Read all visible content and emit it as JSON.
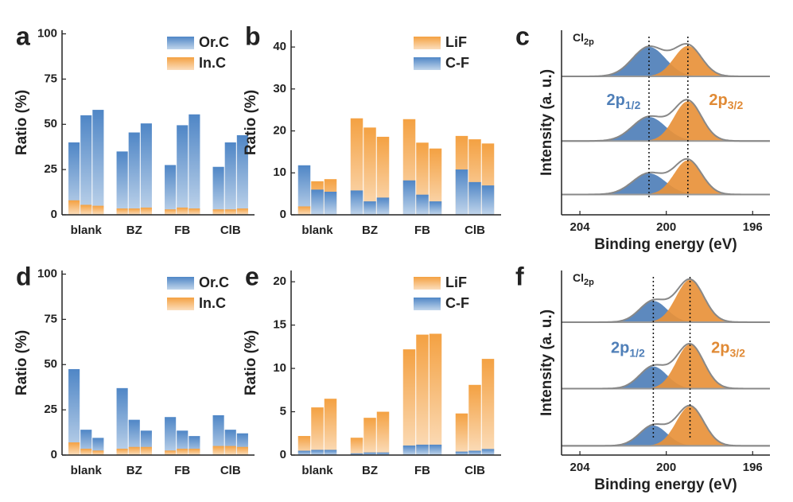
{
  "chart_data": [
    {
      "panel": "a",
      "type": "grouped_bar",
      "ylabel": "Ratio (%)",
      "categories": [
        "blank",
        "BZ",
        "FB",
        "ClB"
      ],
      "ylim": [
        0,
        102
      ],
      "yticks": [
        0,
        25,
        50,
        75,
        100
      ],
      "legend": "upper right",
      "series": [
        {
          "name": "Or.C",
          "color": "#4f86c6",
          "values": [
            [
              40,
              55,
              58
            ],
            [
              35,
              45.5,
              50.5
            ],
            [
              27.5,
              49.5,
              55.5
            ],
            [
              26.5,
              40,
              44
            ]
          ]
        },
        {
          "name": "In.C",
          "color": "#f4a142",
          "values": [
            [
              8,
              5.5,
              5
            ],
            [
              3.5,
              3.5,
              4
            ],
            [
              3,
              4,
              3.5
            ],
            [
              3,
              3,
              3.5
            ]
          ]
        }
      ]
    },
    {
      "panel": "b",
      "type": "grouped_bar",
      "ylabel": "Ratio (%)",
      "categories": [
        "blank",
        "BZ",
        "FB",
        "ClB"
      ],
      "ylim": [
        0,
        44
      ],
      "yticks": [
        0,
        10,
        20,
        30,
        40
      ],
      "legend": "upper right",
      "series": [
        {
          "name": "LiF",
          "color": "#f4a142",
          "values": [
            [
              2,
              8,
              8.5
            ],
            [
              23,
              20.8,
              18.6
            ],
            [
              22.8,
              17.2,
              15.8
            ],
            [
              18.8,
              18,
              17
            ]
          ]
        },
        {
          "name": "C-F",
          "color": "#4f86c6",
          "values": [
            [
              11.8,
              6,
              5.5
            ],
            [
              5.8,
              3.2,
              4.1
            ],
            [
              8.2,
              4.8,
              3.2
            ],
            [
              10.8,
              7.8,
              7
            ]
          ]
        }
      ]
    },
    {
      "panel": "c",
      "type": "xps",
      "ylabel": "Intensity (a. u.)",
      "xlabel": "Binding energy (eV)",
      "xlim": [
        204.85,
        195.2
      ],
      "xticks": [
        204,
        200,
        196
      ],
      "ylim": [
        0,
        10
      ],
      "guides": [
        200.8,
        199.0
      ],
      "core": {
        "text": "Cl",
        "sub": "2p"
      },
      "labels": [
        {
          "text": "2p",
          "sub": "1/2",
          "color": "#4f7fb8"
        },
        {
          "text": "2p",
          "sub": "3/2",
          "color": "#e08a35"
        }
      ],
      "spectra": [
        {
          "baseline": 7.5,
          "components": [
            {
              "center": 200.8,
              "height": 1.6,
              "fwhm": 1.8,
              "color": "#4f7fb8"
            },
            {
              "center": 199.0,
              "height": 1.65,
              "fwhm": 1.5,
              "color": "#e8913a"
            }
          ]
        },
        {
          "baseline": 4.0,
          "components": [
            {
              "center": 200.8,
              "height": 1.3,
              "fwhm": 1.8,
              "color": "#4f7fb8"
            },
            {
              "center": 199.0,
              "height": 2.15,
              "fwhm": 1.5,
              "color": "#e8913a"
            }
          ]
        },
        {
          "baseline": 1.1,
          "components": [
            {
              "center": 200.8,
              "height": 1.15,
              "fwhm": 1.8,
              "color": "#4f7fb8"
            },
            {
              "center": 199.0,
              "height": 1.85,
              "fwhm": 1.5,
              "color": "#e8913a"
            }
          ]
        }
      ]
    },
    {
      "panel": "d",
      "type": "grouped_bar",
      "ylabel": "Ratio (%)",
      "categories": [
        "blank",
        "BZ",
        "FB",
        "ClB"
      ],
      "ylim": [
        0,
        102
      ],
      "yticks": [
        0,
        25,
        50,
        75,
        100
      ],
      "legend": "upper right",
      "series": [
        {
          "name": "Or.C",
          "color": "#4f86c6",
          "values": [
            [
              47.5,
              14,
              9.5
            ],
            [
              37,
              19.5,
              13.5
            ],
            [
              21,
              13.5,
              10.5
            ],
            [
              22,
              14,
              12
            ]
          ]
        },
        {
          "name": "In.C",
          "color": "#f4a142",
          "values": [
            [
              7,
              3.5,
              2.5
            ],
            [
              3.5,
              4.5,
              4.5
            ],
            [
              2.5,
              3.5,
              3.5
            ],
            [
              5,
              5,
              4.5
            ]
          ]
        }
      ]
    },
    {
      "panel": "e",
      "type": "grouped_bar",
      "ylabel": "Ratio (%)",
      "categories": [
        "blank",
        "BZ",
        "FB",
        "ClB"
      ],
      "ylim": [
        0,
        21.3
      ],
      "yticks": [
        0,
        5,
        10,
        15,
        20
      ],
      "legend": "upper right",
      "series": [
        {
          "name": "LiF",
          "color": "#f4a142",
          "values": [
            [
              2.2,
              5.5,
              6.5
            ],
            [
              2,
              4.3,
              5
            ],
            [
              12.2,
              13.9,
              14
            ],
            [
              4.8,
              8.1,
              11.1
            ]
          ]
        },
        {
          "name": "C-F",
          "color": "#4f86c6",
          "values": [
            [
              0.5,
              0.6,
              0.6
            ],
            [
              0.2,
              0.3,
              0.3
            ],
            [
              1.1,
              1.2,
              1.2
            ],
            [
              0.4,
              0.5,
              0.7
            ]
          ]
        }
      ]
    },
    {
      "panel": "f",
      "type": "xps",
      "ylabel": "Intensity (a. u.)",
      "xlabel": "Binding energy (eV)",
      "xlim": [
        204.85,
        195.2
      ],
      "xticks": [
        204,
        200,
        196
      ],
      "ylim": [
        0,
        10
      ],
      "guides": [
        200.6,
        198.9
      ],
      "core": {
        "text": "Cl",
        "sub": "2p"
      },
      "labels": [
        {
          "text": "2p",
          "sub": "1/2",
          "color": "#4f7fb8"
        },
        {
          "text": "2p",
          "sub": "3/2",
          "color": "#e08a35"
        }
      ],
      "spectra": [
        {
          "baseline": 7.2,
          "components": [
            {
              "center": 200.6,
              "height": 1.15,
              "fwhm": 1.5,
              "color": "#4f7fb8"
            },
            {
              "center": 198.9,
              "height": 2.3,
              "fwhm": 1.5,
              "color": "#e8913a"
            }
          ]
        },
        {
          "baseline": 3.6,
          "components": [
            {
              "center": 200.6,
              "height": 1.2,
              "fwhm": 1.5,
              "color": "#4f7fb8"
            },
            {
              "center": 198.9,
              "height": 2.4,
              "fwhm": 1.5,
              "color": "#e8913a"
            }
          ]
        },
        {
          "baseline": 0.5,
          "components": [
            {
              "center": 200.6,
              "height": 1.1,
              "fwhm": 1.5,
              "color": "#4f7fb8"
            },
            {
              "center": 198.9,
              "height": 2.15,
              "fwhm": 1.5,
              "color": "#e8913a"
            }
          ]
        }
      ]
    }
  ]
}
